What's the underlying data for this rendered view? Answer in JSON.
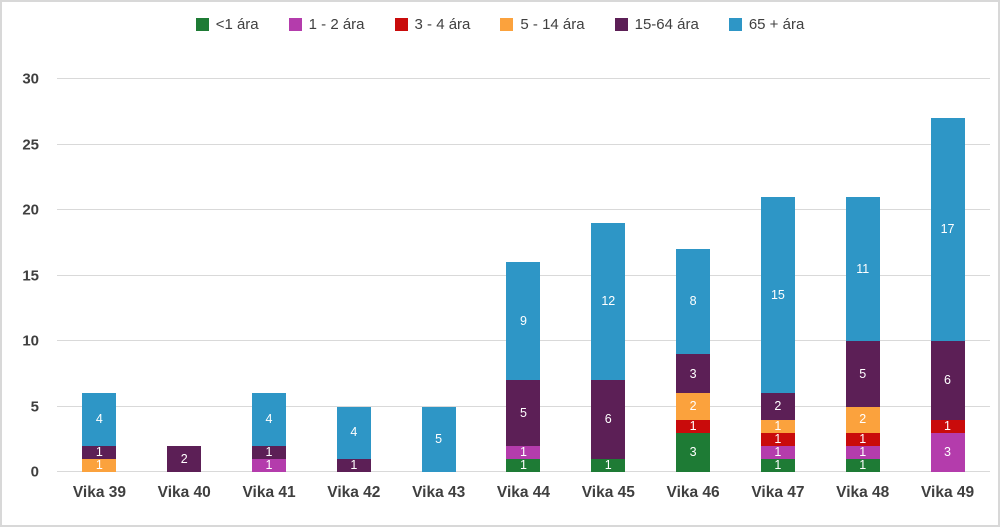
{
  "chart_data": {
    "type": "bar",
    "stacked": true,
    "title": "",
    "xlabel": "",
    "ylabel": "",
    "ylim": [
      0,
      30
    ],
    "yticks": [
      0,
      5,
      10,
      15,
      20,
      25,
      30
    ],
    "grid": true,
    "legend_position": "top-center",
    "categories": [
      "Vika 39",
      "Vika 40",
      "Vika 41",
      "Vika 42",
      "Vika 43",
      "Vika 44",
      "Vika 45",
      "Vika 46",
      "Vika 47",
      "Vika 48",
      "Vika 49"
    ],
    "series": [
      {
        "name": "<1 ára",
        "color": "#1e7b35",
        "values": [
          0,
          0,
          0,
          0,
          0,
          1,
          1,
          3,
          1,
          1,
          0
        ]
      },
      {
        "name": "1 - 2 ára",
        "color": "#b43cac",
        "values": [
          0,
          0,
          1,
          0,
          0,
          1,
          0,
          0,
          1,
          1,
          3
        ]
      },
      {
        "name": "3 - 4 ára",
        "color": "#c90b0b",
        "values": [
          0,
          0,
          0,
          0,
          0,
          0,
          0,
          1,
          1,
          1,
          1
        ]
      },
      {
        "name": "5 - 14 ára",
        "color": "#fba23d",
        "values": [
          1,
          0,
          0,
          0,
          0,
          0,
          0,
          2,
          1,
          2,
          0
        ]
      },
      {
        "name": "15-64 ára",
        "color": "#5c1f56",
        "values": [
          1,
          2,
          1,
          1,
          0,
          5,
          6,
          3,
          2,
          5,
          6
        ]
      },
      {
        "name": "65 + ára",
        "color": "#2e96c6",
        "values": [
          4,
          0,
          4,
          4,
          5,
          9,
          12,
          8,
          15,
          11,
          17
        ]
      }
    ],
    "totals": [
      6,
      2,
      6,
      5,
      5,
      16,
      19,
      17,
      21,
      21,
      27
    ]
  },
  "colors": {
    "gridline": "#d9d9d9",
    "axis_text": "#3f3f3f",
    "segment_label": "#ffffff",
    "panel_border": "#d8d8d8",
    "background": "#ffffff"
  }
}
